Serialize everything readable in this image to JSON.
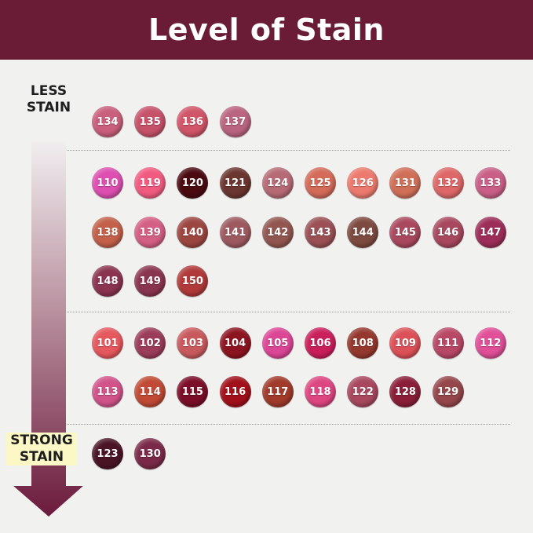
{
  "title": "Level of Stain",
  "scale": {
    "top_label": "LESS STAIN",
    "bottom_label": "STRONG STAIN",
    "arrow_color": "#6b1a3c"
  },
  "groups": [
    {
      "rows": [
        [
          {
            "label": "134",
            "color": "#c95f7c"
          },
          {
            "label": "135",
            "color": "#c6526a"
          },
          {
            "label": "136",
            "color": "#d05568"
          },
          {
            "label": "137",
            "color": "#b96480"
          }
        ]
      ]
    },
    {
      "rows": [
        [
          {
            "label": "110",
            "color": "#dd4fb0"
          },
          {
            "label": "119",
            "color": "#f15b80"
          },
          {
            "label": "120",
            "color": "#4a0a10"
          },
          {
            "label": "121",
            "color": "#6b3530"
          },
          {
            "label": "124",
            "color": "#b66a75"
          },
          {
            "label": "125",
            "color": "#d46a58"
          },
          {
            "label": "126",
            "color": "#ec7a6e"
          },
          {
            "label": "131",
            "color": "#d06f58"
          },
          {
            "label": "132",
            "color": "#de6868"
          },
          {
            "label": "133",
            "color": "#c95f86"
          }
        ],
        [
          {
            "label": "138",
            "color": "#c2604a"
          },
          {
            "label": "139",
            "color": "#d45f84"
          },
          {
            "label": "140",
            "color": "#9c4640"
          },
          {
            "label": "141",
            "color": "#9c5a60"
          },
          {
            "label": "142",
            "color": "#915650"
          },
          {
            "label": "143",
            "color": "#9a5055"
          },
          {
            "label": "144",
            "color": "#7d4a40"
          },
          {
            "label": "145",
            "color": "#a9485e"
          },
          {
            "label": "146",
            "color": "#a8485e"
          },
          {
            "label": "147",
            "color": "#9c2d58"
          }
        ],
        [
          {
            "label": "148",
            "color": "#8a3450"
          },
          {
            "label": "149",
            "color": "#8a3550"
          },
          {
            "label": "150",
            "color": "#b03a3a"
          }
        ]
      ]
    },
    {
      "rows": [
        [
          {
            "label": "101",
            "color": "#e5585e"
          },
          {
            "label": "102",
            "color": "#9a3c5a"
          },
          {
            "label": "103",
            "color": "#c85a5e"
          },
          {
            "label": "104",
            "color": "#8c1420"
          },
          {
            "label": "105",
            "color": "#dc4696"
          },
          {
            "label": "106",
            "color": "#c91f5a"
          },
          {
            "label": "108",
            "color": "#94382e"
          },
          {
            "label": "109",
            "color": "#dc5058"
          },
          {
            "label": "111",
            "color": "#b84866"
          },
          {
            "label": "112",
            "color": "#e04f98"
          }
        ],
        [
          {
            "label": "113",
            "color": "#d0538a"
          },
          {
            "label": "114",
            "color": "#c04a35"
          },
          {
            "label": "115",
            "color": "#7a0d28"
          },
          {
            "label": "116",
            "color": "#a1101a"
          },
          {
            "label": "117",
            "color": "#a03a2a"
          },
          {
            "label": "118",
            "color": "#dd4680"
          },
          {
            "label": "122",
            "color": "#a8485e"
          },
          {
            "label": "128",
            "color": "#8a1e38"
          },
          {
            "label": "129",
            "color": "#94464a"
          }
        ]
      ]
    },
    {
      "rows": [
        [
          {
            "label": "123",
            "color": "#4a1425"
          },
          {
            "label": "130",
            "color": "#7a2a48"
          }
        ]
      ]
    }
  ]
}
